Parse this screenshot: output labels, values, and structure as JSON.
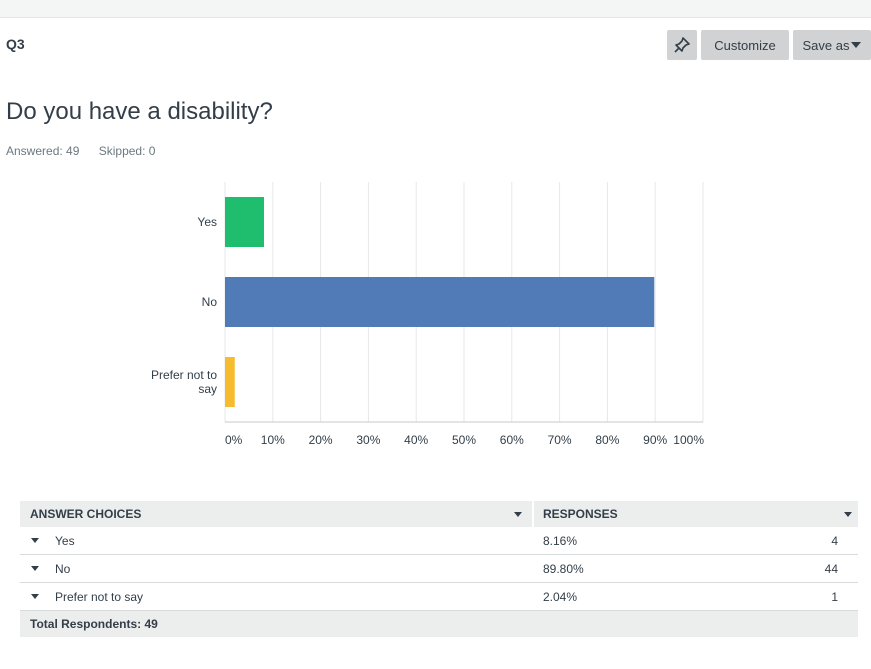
{
  "header": {
    "question_number": "Q3"
  },
  "toolbar": {
    "customize_label": "Customize",
    "save_as_label": "Save as"
  },
  "question": {
    "title": "Do you have a disability?",
    "answered": "Answered: 49",
    "skipped": "Skipped: 0"
  },
  "chart_data": {
    "type": "bar",
    "orientation": "horizontal",
    "categories": [
      "Yes",
      "No",
      "Prefer not to say"
    ],
    "values": [
      8.16,
      89.8,
      2.04
    ],
    "colors": [
      "#1ebe6e",
      "#517bb7",
      "#f6bc2e"
    ],
    "xlim": [
      0,
      100
    ],
    "xticks": [
      "0%",
      "10%",
      "20%",
      "30%",
      "40%",
      "50%",
      "60%",
      "70%",
      "80%",
      "90%",
      "100%"
    ],
    "grid": true
  },
  "table": {
    "col_answer": "ANSWER CHOICES",
    "col_responses": "RESPONSES",
    "rows": [
      {
        "label": "Yes",
        "percent": "8.16%",
        "count": "4"
      },
      {
        "label": "No",
        "percent": "89.80%",
        "count": "44"
      },
      {
        "label": "Prefer not to say",
        "percent": "2.04%",
        "count": "1"
      }
    ],
    "total": "Total Respondents: 49"
  }
}
